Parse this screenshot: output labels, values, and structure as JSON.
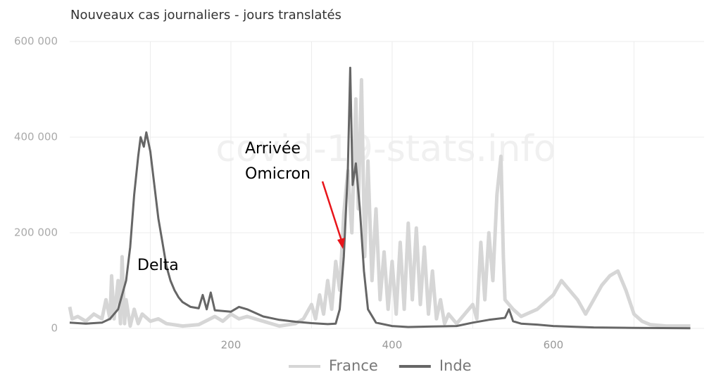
{
  "chart_data": {
    "type": "line",
    "title": "Nouveaux cas journaliers - jours translatés",
    "watermark": "covid-19-stats.info",
    "annotations": [
      "Delta",
      "Arrivée",
      "Omicron"
    ],
    "xlim": [
      0,
      787
    ],
    "xticks": [
      200,
      400,
      600
    ],
    "x_minor_grid": [
      100,
      300,
      500,
      700
    ],
    "ylim": [
      0,
      600000
    ],
    "yticks": [
      0,
      {
        "value": 200000,
        "label": "200 000"
      },
      {
        "value": 400000,
        "label": "400 000"
      },
      {
        "value": 600000,
        "label": "600 000"
      }
    ],
    "grid": true,
    "legend": "bottom",
    "series": [
      {
        "name": "France",
        "color": "#d6d6d6",
        "x": [
          0,
          3,
          10,
          20,
          30,
          40,
          45,
          50,
          52,
          55,
          60,
          63,
          65,
          68,
          70,
          75,
          80,
          85,
          90,
          100,
          110,
          120,
          140,
          160,
          180,
          190,
          200,
          210,
          220,
          240,
          260,
          280,
          290,
          300,
          305,
          310,
          315,
          320,
          325,
          330,
          335,
          340,
          345,
          350,
          355,
          358,
          362,
          366,
          370,
          375,
          380,
          385,
          390,
          395,
          400,
          405,
          410,
          415,
          420,
          425,
          430,
          435,
          440,
          445,
          450,
          455,
          460,
          465,
          470,
          480,
          490,
          500,
          505,
          510,
          515,
          520,
          525,
          530,
          535,
          538,
          540,
          550,
          560,
          580,
          600,
          610,
          620,
          630,
          640,
          650,
          660,
          670,
          680,
          690,
          700,
          710,
          720,
          740,
          760,
          770
        ],
        "values": [
          45000,
          20000,
          25000,
          15000,
          30000,
          20000,
          60000,
          20000,
          110000,
          20000,
          100000,
          10000,
          150000,
          10000,
          60000,
          5000,
          40000,
          10000,
          30000,
          15000,
          20000,
          10000,
          5000,
          8000,
          25000,
          15000,
          30000,
          20000,
          25000,
          15000,
          5000,
          10000,
          20000,
          50000,
          20000,
          70000,
          30000,
          100000,
          40000,
          140000,
          80000,
          240000,
          330000,
          200000,
          480000,
          250000,
          520000,
          150000,
          350000,
          100000,
          250000,
          60000,
          160000,
          40000,
          140000,
          30000,
          180000,
          40000,
          220000,
          60000,
          210000,
          50000,
          170000,
          30000,
          120000,
          20000,
          60000,
          10000,
          30000,
          10000,
          30000,
          50000,
          20000,
          180000,
          60000,
          200000,
          100000,
          280000,
          360000,
          150000,
          60000,
          40000,
          25000,
          40000,
          70000,
          100000,
          80000,
          60000,
          30000,
          60000,
          90000,
          110000,
          120000,
          80000,
          30000,
          15000,
          8000,
          5000,
          5000,
          5000
        ]
      },
      {
        "name": "Inde",
        "color": "#666666",
        "x": [
          0,
          20,
          40,
          50,
          60,
          70,
          75,
          80,
          85,
          88,
          92,
          95,
          100,
          105,
          110,
          115,
          120,
          125,
          130,
          135,
          140,
          150,
          160,
          165,
          170,
          175,
          180,
          200,
          210,
          220,
          240,
          260,
          280,
          300,
          320,
          330,
          335,
          340,
          345,
          348,
          351,
          355,
          360,
          365,
          370,
          380,
          400,
          420,
          450,
          480,
          500,
          520,
          540,
          545,
          550,
          560,
          580,
          600,
          650,
          700,
          770
        ],
        "values": [
          12000,
          10000,
          12000,
          20000,
          40000,
          100000,
          170000,
          280000,
          360000,
          400000,
          380000,
          410000,
          370000,
          300000,
          230000,
          180000,
          130000,
          100000,
          80000,
          65000,
          55000,
          45000,
          42000,
          70000,
          40000,
          75000,
          38000,
          35000,
          45000,
          40000,
          25000,
          18000,
          14000,
          11000,
          9000,
          10000,
          40000,
          150000,
          330000,
          545000,
          300000,
          345000,
          250000,
          120000,
          40000,
          12000,
          5000,
          3000,
          4000,
          5000,
          12000,
          18000,
          22000,
          40000,
          15000,
          10000,
          8000,
          5000,
          2000,
          1000,
          500
        ]
      }
    ]
  }
}
